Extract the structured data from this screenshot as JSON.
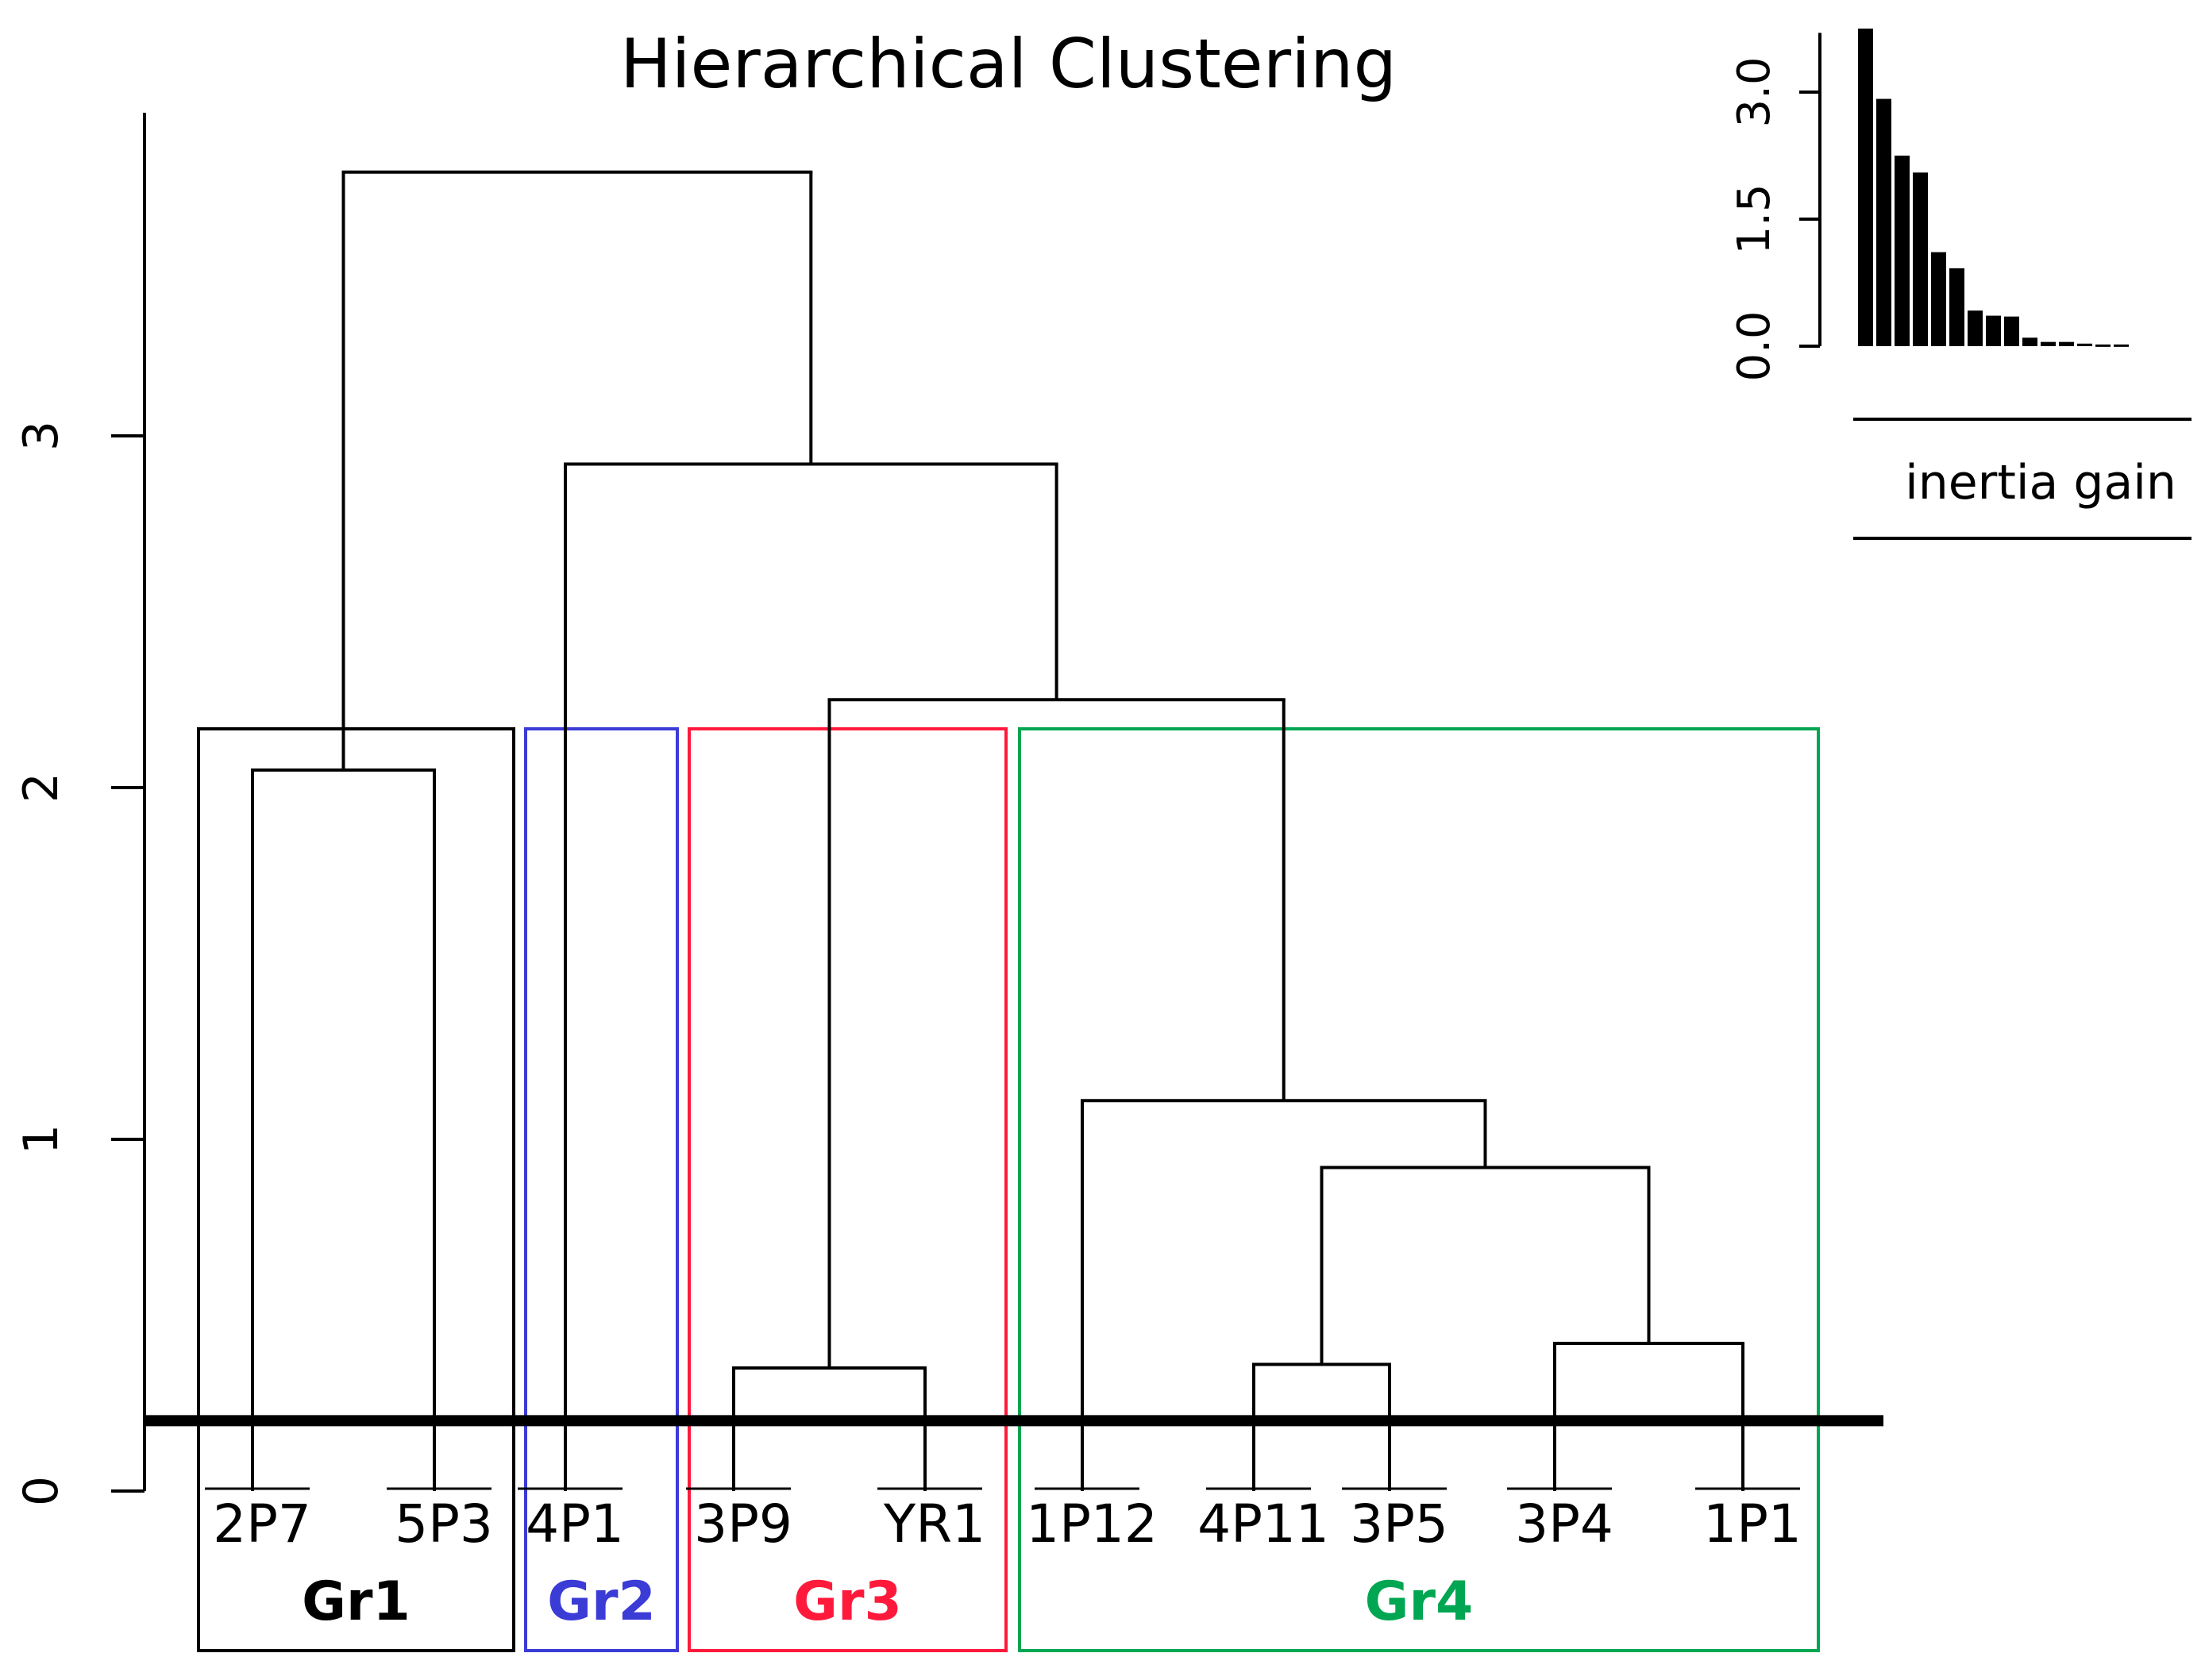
{
  "chart_data": {
    "type": "dendrogram",
    "title": "Hierarchical Clustering",
    "ylim": [
      0,
      3.9
    ],
    "yticks": [
      0,
      1,
      2,
      3
    ],
    "cut_height": 0.2,
    "leaves": [
      "2P7",
      "5P3",
      "4P1",
      "3P9",
      "YR1",
      "1P12",
      "4P11",
      "3P5",
      "3P4",
      "1P1"
    ],
    "merges": [
      {
        "id": "m1",
        "left": "3P9",
        "right": "YR1",
        "height": 0.35
      },
      {
        "id": "m2",
        "left": "4P11",
        "right": "3P5",
        "height": 0.36
      },
      {
        "id": "m3",
        "left": "3P4",
        "right": "1P1",
        "height": 0.42
      },
      {
        "id": "m4",
        "left": "m2",
        "right": "m3",
        "height": 0.92
      },
      {
        "id": "m5",
        "left": "1P12",
        "right": "m4",
        "height": 1.11
      },
      {
        "id": "m6",
        "left": "2P7",
        "right": "5P3",
        "height": 2.05
      },
      {
        "id": "m7",
        "left": "m1",
        "right": "m5",
        "height": 2.25
      },
      {
        "id": "m8",
        "left": "4P1",
        "right": "m7",
        "height": 2.92
      },
      {
        "id": "m9",
        "left": "m6",
        "right": "m8",
        "height": 3.75
      }
    ],
    "groups": [
      {
        "name": "Gr1",
        "leaves": [
          "2P7",
          "5P3"
        ],
        "color": "#000000"
      },
      {
        "name": "Gr2",
        "leaves": [
          "4P1"
        ],
        "color": "#3b3bd6"
      },
      {
        "name": "Gr3",
        "leaves": [
          "3P9",
          "YR1"
        ],
        "color": "#ff1a3c"
      },
      {
        "name": "Gr4",
        "leaves": [
          "1P12",
          "4P11",
          "3P5",
          "3P4",
          "1P1"
        ],
        "color": "#00a651"
      }
    ],
    "inset": {
      "type": "bar",
      "label": "inertia gain",
      "ylim": [
        0,
        3.7
      ],
      "yticks": [
        "0.0",
        "1.5",
        "3.0"
      ],
      "values": [
        3.75,
        2.92,
        2.25,
        2.05,
        1.11,
        0.92,
        0.42,
        0.36,
        0.35,
        0.1,
        0.05,
        0.05,
        0.03,
        0.02,
        0.02
      ]
    }
  }
}
